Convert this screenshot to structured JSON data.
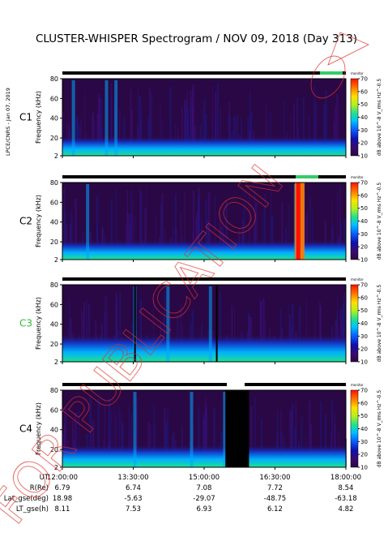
{
  "title": "CLUSTER-WHISPER Spectrogram / NOV 09, 2018 (Day 313)",
  "side_note": "LPCE/CNRS - Jan 07, 2019",
  "watermark": "FOR PUBLICATION",
  "colors": {
    "background": "#2a0845",
    "marker": "#ff0000",
    "status_bar": "#000000",
    "status_green": "#33cc66",
    "stamp": "#e0302a"
  },
  "chart_data": {
    "type": "heatmap",
    "x_axis": {
      "name": "UT",
      "ticks": [
        "12:00:00",
        "13:30:00",
        "15:00:00",
        "16:30:00",
        "18:00:00"
      ],
      "range": [
        "12:00:00",
        "18:00:00"
      ]
    },
    "y_axis": {
      "label": "Frequency (kHz)",
      "ticks": [
        2,
        20,
        40,
        60,
        80
      ],
      "range": [
        2,
        80
      ]
    },
    "colorbar": {
      "label": "dB above 10^-8 V_rms Hz^-0.5",
      "ticks": [
        10,
        20,
        30,
        40,
        50,
        60,
        70
      ],
      "range": [
        10,
        70
      ],
      "colors": [
        "#2a0845",
        "#3a0a6a",
        "#1010b0",
        "#0a60ff",
        "#00c0ff",
        "#20e090",
        "#b0f020",
        "#ffe000",
        "#ff7a00",
        "#ff1000"
      ]
    },
    "status_label": "monitor",
    "panels": [
      {
        "name": "C1",
        "label_color": "#000000"
      },
      {
        "name": "C2",
        "label_color": "#000000"
      },
      {
        "name": "C3",
        "label_color": "#33bb33"
      },
      {
        "name": "C4",
        "label_color": "#000000"
      }
    ],
    "ephemeris": [
      {
        "label": "R(Re)",
        "values": [
          "6.79",
          "6.74",
          "7.08",
          "7.72",
          "8.54"
        ]
      },
      {
        "label": "Lat_gse(deg)",
        "values": [
          "18.98",
          "-5.63",
          "-29.07",
          "-48.75",
          "-63.18"
        ]
      },
      {
        "label": "LT_gse(h)",
        "values": [
          "8.11",
          "7.53",
          "6.93",
          "6.12",
          "4.82"
        ]
      }
    ]
  }
}
